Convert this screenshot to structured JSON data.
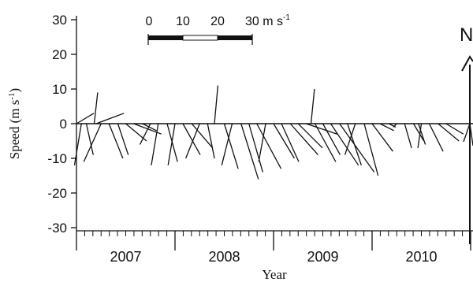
{
  "chart_data": {
    "type": "vector-stick",
    "xlabel": "Year",
    "ylabel_main": "Speed (m s",
    "ylabel_sup": "-1",
    "ylabel_close": ")",
    "ylim": [
      -30,
      30
    ],
    "yticks": [
      "30",
      "20",
      "10",
      "0",
      "-10",
      "-20",
      "-30"
    ],
    "years": [
      "2007",
      "2008",
      "2009",
      "2010"
    ],
    "scale_bar": {
      "labels": [
        "0",
        "10",
        "20"
      ],
      "end_label": "30 m s",
      "end_sup": "-1"
    },
    "north_label": "N",
    "grid": false,
    "sticks": [
      {
        "x": 0.0,
        "u": 5,
        "v": 3
      },
      {
        "x": 0.05,
        "u": -2,
        "v": -12
      },
      {
        "x": 0.1,
        "u": 2,
        "v": -9
      },
      {
        "x": 0.18,
        "u": 1,
        "v": 9
      },
      {
        "x": 0.2,
        "u": 8,
        "v": 3
      },
      {
        "x": 0.25,
        "u": -5,
        "v": -11
      },
      {
        "x": 0.33,
        "u": 4,
        "v": -10
      },
      {
        "x": 0.42,
        "u": 3,
        "v": -9
      },
      {
        "x": 0.5,
        "u": 6,
        "v": -5
      },
      {
        "x": 0.58,
        "u": 8,
        "v": -3
      },
      {
        "x": 0.67,
        "u": 4,
        "v": -2
      },
      {
        "x": 0.75,
        "u": -3,
        "v": -6
      },
      {
        "x": 0.83,
        "u": -2,
        "v": -12
      },
      {
        "x": 0.92,
        "u": 3,
        "v": -11
      },
      {
        "x": 1.0,
        "u": -2,
        "v": -12
      },
      {
        "x": 1.08,
        "u": 5,
        "v": -9
      },
      {
        "x": 1.17,
        "u": 6,
        "v": -7
      },
      {
        "x": 1.25,
        "u": -4,
        "v": -10
      },
      {
        "x": 1.33,
        "u": 2,
        "v": -10
      },
      {
        "x": 1.4,
        "u": 1,
        "v": 11
      },
      {
        "x": 1.5,
        "u": 4,
        "v": -13
      },
      {
        "x": 1.58,
        "u": -3,
        "v": -12
      },
      {
        "x": 1.67,
        "u": 5,
        "v": -16
      },
      {
        "x": 1.75,
        "u": 4,
        "v": -14
      },
      {
        "x": 1.83,
        "u": 7,
        "v": -13
      },
      {
        "x": 1.92,
        "u": -2,
        "v": -11
      },
      {
        "x": 2.0,
        "u": 6,
        "v": -10
      },
      {
        "x": 2.08,
        "u": 5,
        "v": -11
      },
      {
        "x": 2.17,
        "u": 8,
        "v": -9
      },
      {
        "x": 2.25,
        "u": 7,
        "v": -7
      },
      {
        "x": 2.33,
        "u": 9,
        "v": -3
      },
      {
        "x": 2.38,
        "u": 1,
        "v": 10
      },
      {
        "x": 2.42,
        "u": 6,
        "v": -11
      },
      {
        "x": 2.5,
        "u": 5,
        "v": -9
      },
      {
        "x": 2.58,
        "u": 8,
        "v": -12
      },
      {
        "x": 2.67,
        "u": 10,
        "v": -14
      },
      {
        "x": 2.75,
        "u": 4,
        "v": -12
      },
      {
        "x": 2.83,
        "u": -3,
        "v": -9
      },
      {
        "x": 2.92,
        "u": 4,
        "v": -15
      },
      {
        "x": 3.0,
        "u": 6,
        "v": -8
      },
      {
        "x": 3.08,
        "u": 4,
        "v": -2
      },
      {
        "x": 3.17,
        "u": 2,
        "v": -1
      },
      {
        "x": 3.25,
        "u": -1,
        "v": -1
      },
      {
        "x": 3.33,
        "u": 2,
        "v": -7
      },
      {
        "x": 3.42,
        "u": 3,
        "v": -5
      },
      {
        "x": 3.47,
        "u": 2,
        "v": -6
      },
      {
        "x": 3.5,
        "u": -1,
        "v": -7
      },
      {
        "x": 3.58,
        "u": 4,
        "v": -8
      },
      {
        "x": 3.67,
        "u": 6,
        "v": -5
      },
      {
        "x": 3.75,
        "u": 5,
        "v": -3
      }
    ]
  }
}
